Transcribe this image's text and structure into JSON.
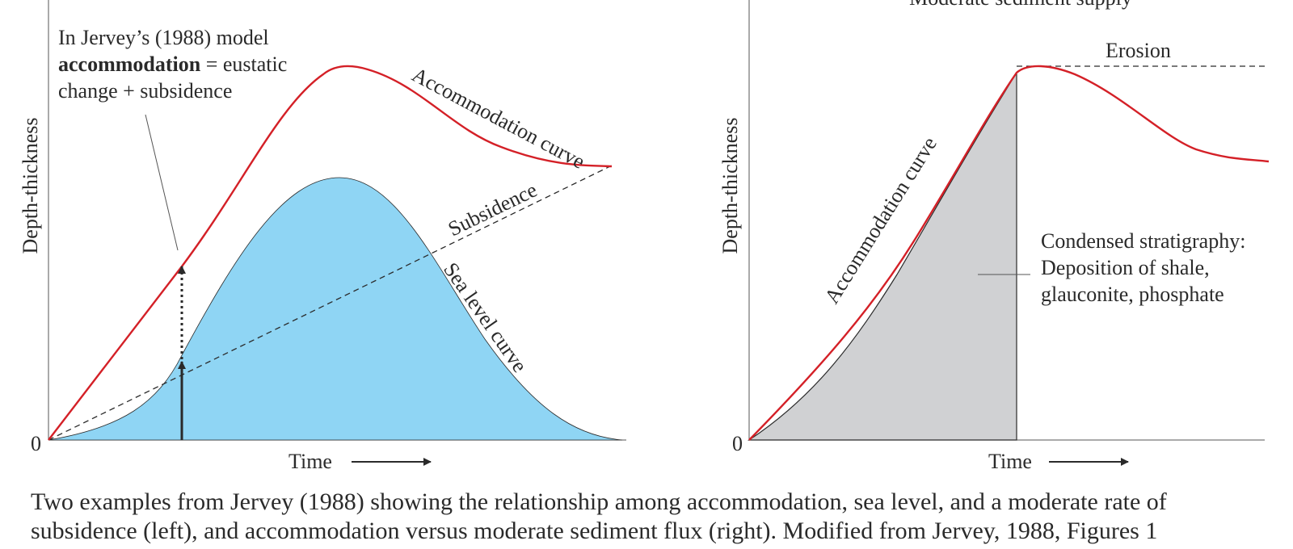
{
  "left_panel": {
    "ylabel": "Depth-thickness",
    "zero": "0",
    "xlabel": "Time",
    "note_line1": "In Jervey’s (1988) model",
    "note_bold": "accommodation",
    "note_line2_rest": " = eustatic",
    "note_line3": "change + subsidence",
    "accommodation_label": "Accommodation curve",
    "subsidence_label": "Subsidence",
    "sea_level_label": "Sea level curve"
  },
  "right_panel": {
    "title": "Moderate sediment supply",
    "ylabel": "Depth-thickness",
    "zero": "0",
    "xlabel": "Time",
    "erosion_label": "Erosion",
    "accommodation_label": "Accommodation curve",
    "condensed_line1": "Condensed stratigraphy:",
    "condensed_line2": "Deposition of shale,",
    "condensed_line3": "glauconite, phosphate"
  },
  "caption": "Two examples from Jervey (1988) showing the relationship among accommodation, sea level, and a moderate rate of subsidence (left), and accommodation versus moderate sediment flux (right). Modified from Jervey, 1988, Figures 1",
  "colors": {
    "accommodation": "#d42027",
    "sea_fill": "#8fd5f4",
    "sediment_fill": "#d0d1d3",
    "ink": "#2a2a2a"
  }
}
